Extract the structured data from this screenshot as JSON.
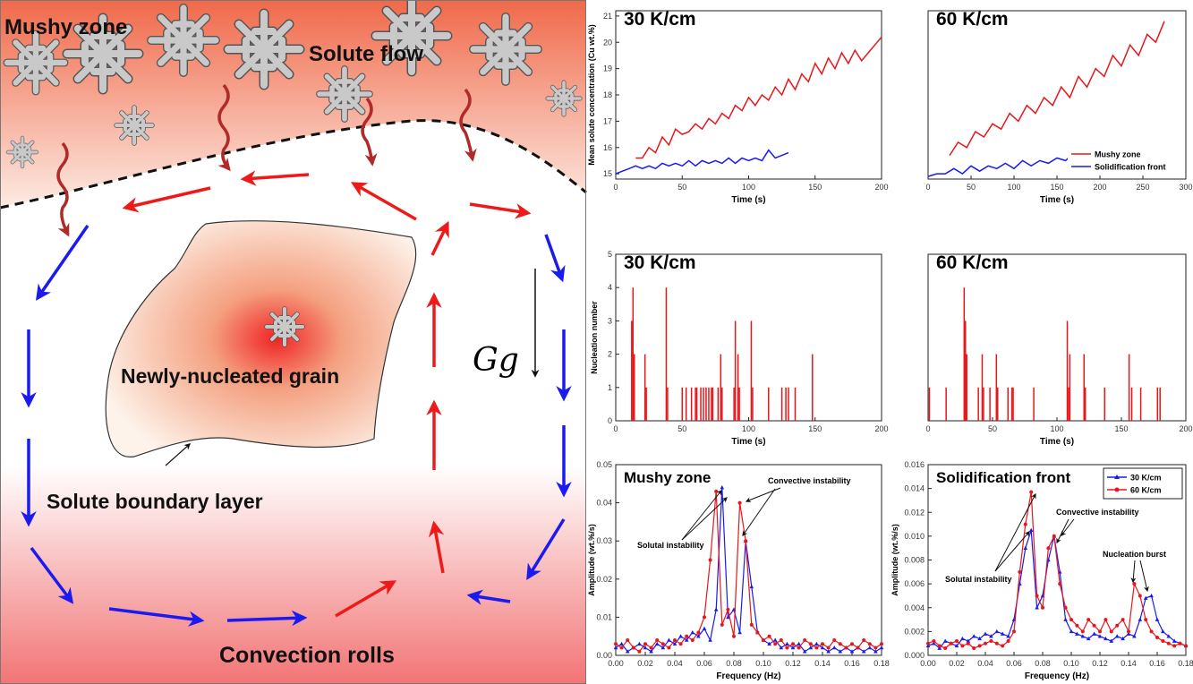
{
  "diagram": {
    "mushy_zone": "Mushy zone",
    "solute_flow": "Solute flow",
    "grain": "Newly-nucleated grain",
    "boundary_layer": "Solute boundary layer",
    "convection": "Convection rolls",
    "gravity": "Gg"
  },
  "chart_data": [
    {
      "type": "line",
      "title": "30 K/cm",
      "xlabel": "Time (s)",
      "ylabel": "Mean solute concentration (Cu wt.%)",
      "xlim": [
        0,
        200
      ],
      "xticks": [
        0,
        50,
        100,
        150,
        200
      ],
      "ylim": [
        14.8,
        21.2
      ],
      "yticks": [
        15,
        16,
        17,
        18,
        19,
        20,
        21
      ],
      "series": [
        {
          "color": "#e8161b",
          "x": [
            15,
            20,
            25,
            30,
            35,
            40,
            45,
            50,
            55,
            60,
            65,
            70,
            75,
            80,
            85,
            90,
            95,
            100,
            105,
            110,
            115,
            120,
            125,
            130,
            135,
            140,
            145,
            150,
            155,
            160,
            165,
            170,
            175,
            180,
            185,
            190,
            195,
            200
          ],
          "values": [
            15.6,
            15.6,
            16.0,
            15.8,
            16.4,
            16.1,
            16.7,
            16.5,
            16.6,
            16.9,
            16.7,
            17.1,
            16.9,
            17.3,
            17.1,
            17.6,
            17.4,
            17.9,
            17.6,
            18.0,
            17.8,
            18.3,
            18.0,
            18.6,
            18.2,
            18.8,
            18.5,
            19.2,
            18.8,
            19.4,
            19.0,
            19.6,
            19.2,
            19.7,
            19.3,
            19.6,
            19.9,
            20.2
          ]
        },
        {
          "color": "#1a1aef",
          "x": [
            0,
            5,
            10,
            15,
            20,
            25,
            30,
            35,
            40,
            45,
            50,
            55,
            60,
            65,
            70,
            75,
            80,
            85,
            90,
            95,
            100,
            105,
            110,
            115,
            120,
            125,
            130
          ],
          "values": [
            15.0,
            15.1,
            15.2,
            15.3,
            15.2,
            15.3,
            15.2,
            15.4,
            15.3,
            15.4,
            15.3,
            15.5,
            15.3,
            15.5,
            15.4,
            15.5,
            15.4,
            15.6,
            15.4,
            15.6,
            15.5,
            15.6,
            15.5,
            15.9,
            15.6,
            15.7,
            15.8
          ]
        }
      ]
    },
    {
      "type": "line",
      "title": "60 K/cm",
      "xlabel": "Time (s)",
      "xlim": [
        0,
        300
      ],
      "xticks": [
        0,
        50,
        100,
        150,
        200,
        250,
        300
      ],
      "ylim": [
        14.8,
        21.2
      ],
      "legend": "lower right",
      "series": [
        {
          "name": "Mushy zone",
          "color": "#e8161b",
          "x": [
            25,
            35,
            45,
            55,
            65,
            75,
            85,
            95,
            105,
            115,
            125,
            135,
            145,
            155,
            165,
            175,
            185,
            195,
            205,
            215,
            225,
            235,
            245,
            255,
            265,
            275
          ],
          "values": [
            15.7,
            16.2,
            16.0,
            16.6,
            16.4,
            16.9,
            16.7,
            17.3,
            17.0,
            17.6,
            17.3,
            17.9,
            17.6,
            18.3,
            17.9,
            18.7,
            18.3,
            19.0,
            18.7,
            19.5,
            19.1,
            19.9,
            19.5,
            20.3,
            20.0,
            20.8
          ]
        },
        {
          "name": "Solidification front",
          "color": "#1a1aef",
          "x": [
            0,
            10,
            20,
            30,
            40,
            50,
            60,
            70,
            80,
            90,
            100,
            110,
            120,
            130,
            140,
            150,
            160,
            170
          ],
          "values": [
            14.9,
            15.0,
            15.0,
            15.2,
            15.0,
            15.3,
            15.1,
            15.3,
            15.2,
            15.4,
            15.2,
            15.5,
            15.3,
            15.5,
            15.4,
            15.6,
            15.5,
            15.8
          ]
        }
      ]
    },
    {
      "type": "bar",
      "title": "30 K/cm",
      "xlabel": "Time (s)",
      "ylabel": "Nucleation number",
      "xlim": [
        0,
        200
      ],
      "xticks": [
        0,
        50,
        100,
        150,
        200
      ],
      "ylim": [
        0,
        5
      ],
      "yticks": [
        0,
        1,
        2,
        3,
        4,
        5
      ],
      "color": "#e8161b",
      "x": [
        12,
        13,
        14,
        22,
        23,
        38,
        39,
        50,
        53,
        57,
        60,
        61,
        64,
        66,
        68,
        70,
        72,
        73,
        77,
        79,
        80,
        89,
        90,
        92,
        93,
        102,
        103,
        115,
        125,
        128,
        130,
        135,
        148
      ],
      "values": [
        3,
        4,
        2,
        2,
        1,
        4,
        1,
        1,
        1,
        1,
        1,
        1,
        1,
        1,
        1,
        1,
        1,
        1,
        1,
        2,
        1,
        1,
        3,
        2,
        1,
        3,
        1,
        1,
        1,
        1,
        1,
        1,
        2
      ]
    },
    {
      "type": "bar",
      "title": "60 K/cm",
      "xlabel": "Time (s)",
      "xlim": [
        0,
        200
      ],
      "xticks": [
        0,
        50,
        100,
        150,
        200
      ],
      "ylim": [
        0,
        5
      ],
      "color": "#e8161b",
      "x": [
        1,
        14,
        28,
        29,
        30,
        39,
        42,
        43,
        48,
        53,
        54,
        62,
        65,
        66,
        82,
        108,
        109,
        110,
        121,
        122,
        137,
        156,
        158,
        165,
        178,
        180
      ],
      "values": [
        1,
        1,
        4,
        3,
        2,
        1,
        2,
        1,
        1,
        2,
        1,
        1,
        1,
        1,
        1,
        3,
        1,
        2,
        2,
        1,
        1,
        2,
        1,
        1,
        1,
        1
      ]
    },
    {
      "type": "line",
      "title": "Mushy zone",
      "xlabel": "Frequency (Hz)",
      "ylabel": "Amplitude (wt.%/s)",
      "annotations": [
        "Convective instability",
        "Solutal instability"
      ],
      "xlim": [
        0,
        0.18
      ],
      "xticks": [
        {
          "value": 0,
          "label": "0.00"
        },
        0.02,
        0.04,
        0.06,
        0.08,
        {
          "value": 0.1,
          "label": "0.10"
        },
        0.12,
        0.14,
        0.16,
        0.18
      ],
      "ylim": [
        0,
        0.05
      ],
      "yticks": [
        {
          "value": 0,
          "label": "0.00"
        },
        0.01,
        0.02,
        0.03,
        0.04,
        0.05
      ],
      "x": [
        0,
        0.004,
        0.008,
        0.012,
        0.016,
        0.02,
        0.024,
        0.028,
        0.032,
        0.036,
        0.04,
        0.044,
        0.048,
        0.052,
        0.056,
        0.06,
        0.064,
        0.068,
        0.072,
        0.076,
        0.08,
        0.084,
        0.088,
        0.092,
        0.096,
        0.1,
        0.104,
        0.108,
        0.112,
        0.116,
        0.12,
        0.124,
        0.128,
        0.132,
        0.136,
        0.14,
        0.144,
        0.148,
        0.152,
        0.156,
        0.16,
        0.164,
        0.168,
        0.172,
        0.176,
        0.18
      ],
      "series": [
        {
          "color": "#1a1aef",
          "marker": "triangle",
          "values": [
            0.002,
            0.003,
            0.001,
            0.002,
            0.003,
            0.002,
            0.001,
            0.003,
            0.002,
            0.004,
            0.003,
            0.005,
            0.004,
            0.006,
            0.005,
            0.007,
            0.004,
            0.012,
            0.044,
            0.01,
            0.012,
            0.006,
            0.03,
            0.018,
            0.006,
            0.004,
            0.003,
            0.004,
            0.002,
            0.003,
            0.002,
            0.003,
            0.001,
            0.002,
            0.003,
            0.002,
            0.001,
            0.002,
            0.001,
            0.002,
            0.001,
            0.002,
            0.001,
            0.002,
            0.001,
            0.002
          ]
        },
        {
          "color": "#e8161b",
          "marker": "circle",
          "values": [
            0.003,
            0.002,
            0.004,
            0.002,
            0.001,
            0.003,
            0.002,
            0.004,
            0.003,
            0.002,
            0.004,
            0.003,
            0.005,
            0.004,
            0.006,
            0.01,
            0.025,
            0.043,
            0.008,
            0.012,
            0.005,
            0.04,
            0.03,
            0.008,
            0.006,
            0.004,
            0.005,
            0.003,
            0.004,
            0.002,
            0.003,
            0.002,
            0.004,
            0.003,
            0.002,
            0.003,
            0.002,
            0.004,
            0.003,
            0.002,
            0.003,
            0.002,
            0.004,
            0.003,
            0.002,
            0.003
          ]
        }
      ]
    },
    {
      "type": "line",
      "title": "Solidification front",
      "xlabel": "Frequency (Hz)",
      "ylabel": "Amplitude (wt.%/s)",
      "annotations": [
        "Convective instability",
        "Solutal instability",
        "Nucleation burst"
      ],
      "legend": "upper right",
      "xlim": [
        0,
        0.18
      ],
      "xticks": [
        {
          "value": 0,
          "label": "0.00"
        },
        0.02,
        0.04,
        0.06,
        0.08,
        {
          "value": 0.1,
          "label": "0.10"
        },
        0.12,
        0.14,
        0.16,
        0.18
      ],
      "ylim": [
        0,
        0.016
      ],
      "yticks": [
        {
          "value": 0,
          "label": "0.000"
        },
        0.002,
        0.004,
        0.006,
        0.008,
        {
          "value": 0.01,
          "label": "0.010"
        },
        0.012,
        0.014,
        0.016
      ],
      "x": [
        0,
        0.004,
        0.008,
        0.012,
        0.016,
        0.02,
        0.024,
        0.028,
        0.032,
        0.036,
        0.04,
        0.044,
        0.048,
        0.052,
        0.056,
        0.06,
        0.064,
        0.068,
        0.072,
        0.076,
        0.08,
        0.084,
        0.088,
        0.092,
        0.096,
        0.1,
        0.104,
        0.108,
        0.112,
        0.116,
        0.12,
        0.124,
        0.128,
        0.132,
        0.136,
        0.14,
        0.144,
        0.148,
        0.152,
        0.156,
        0.16,
        0.164,
        0.168,
        0.172,
        0.176,
        0.18
      ],
      "series": [
        {
          "name": "30 K/cm",
          "color": "#1a1aef",
          "marker": "triangle",
          "values": [
            0.0008,
            0.001,
            0.0006,
            0.0012,
            0.001,
            0.0008,
            0.0014,
            0.0012,
            0.0016,
            0.0014,
            0.0018,
            0.0016,
            0.002,
            0.0018,
            0.0016,
            0.003,
            0.006,
            0.009,
            0.0105,
            0.004,
            0.005,
            0.008,
            0.01,
            0.007,
            0.003,
            0.002,
            0.0018,
            0.0016,
            0.0014,
            0.0018,
            0.0016,
            0.0014,
            0.0012,
            0.0016,
            0.0014,
            0.0018,
            0.0016,
            0.003,
            0.0048,
            0.005,
            0.003,
            0.002,
            0.0016,
            0.0012,
            0.001,
            0.0008
          ]
        },
        {
          "name": "60 K/cm",
          "color": "#e8161b",
          "marker": "circle",
          "values": [
            0.001,
            0.0012,
            0.0008,
            0.0006,
            0.001,
            0.0012,
            0.0008,
            0.001,
            0.0006,
            0.0008,
            0.001,
            0.0012,
            0.001,
            0.0008,
            0.0012,
            0.002,
            0.007,
            0.011,
            0.0137,
            0.005,
            0.004,
            0.009,
            0.01,
            0.006,
            0.004,
            0.003,
            0.0025,
            0.002,
            0.003,
            0.0025,
            0.002,
            0.003,
            0.002,
            0.0025,
            0.003,
            0.002,
            0.006,
            0.005,
            0.003,
            0.002,
            0.0015,
            0.0012,
            0.001,
            0.0008,
            0.001,
            0.0008
          ]
        }
      ]
    }
  ]
}
